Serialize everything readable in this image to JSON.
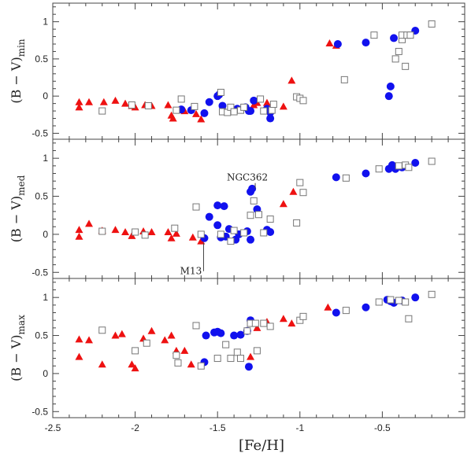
{
  "chart_data": {
    "type": "scatter",
    "xlabel": "[Fe/H]",
    "xlim": [
      -2.5,
      0.0
    ],
    "x_ticks": [
      "-2.5",
      "-2",
      "-1.5",
      "-1",
      "-0.5"
    ],
    "y_ticks": [
      "1",
      "0.5",
      "0",
      "-0.5"
    ],
    "colors": {
      "triangle": "#ee1111",
      "circle": "#1111ee",
      "square": "#777777"
    },
    "panels": [
      {
        "ylabel_main": "(B − V)",
        "ylabel_sub": "min",
        "ylim": [
          -0.58,
          1.25
        ],
        "series": [
          {
            "marker": "triangle",
            "x": [
              -2.34,
              -2.34,
              -2.28,
              -2.19,
              -2.12,
              -2.06,
              -2.02,
              -2.0,
              -1.94,
              -1.9,
              -1.8,
              -1.78,
              -1.77,
              -1.7,
              -1.63,
              -1.6,
              -1.28,
              -1.26,
              -1.2,
              -1.1,
              -1.05,
              -0.82,
              -0.78
            ],
            "y": [
              -0.08,
              -0.15,
              -0.08,
              -0.08,
              -0.06,
              -0.1,
              -0.13,
              -0.15,
              -0.12,
              -0.13,
              -0.12,
              -0.26,
              -0.3,
              -0.2,
              -0.24,
              -0.31,
              -0.12,
              -0.09,
              -0.09,
              -0.14,
              0.21,
              0.71,
              0.68
            ]
          },
          {
            "marker": "circle",
            "x": [
              -1.72,
              -1.66,
              -1.58,
              -1.55,
              -1.5,
              -1.49,
              -1.47,
              -1.38,
              -1.33,
              -1.31,
              -1.3,
              -1.28,
              -1.2,
              -1.18,
              -1.18,
              -0.77,
              -0.6,
              -0.46,
              -0.45,
              -0.43,
              -0.3
            ],
            "y": [
              -0.18,
              -0.19,
              -0.23,
              -0.08,
              0.0,
              0.02,
              -0.13,
              -0.17,
              -0.15,
              -0.2,
              -0.2,
              -0.06,
              -0.17,
              -0.22,
              -0.3,
              0.7,
              0.72,
              0.0,
              0.13,
              0.78,
              0.88
            ]
          },
          {
            "marker": "square",
            "x": [
              -2.2,
              -2.02,
              -1.92,
              -1.75,
              -1.72,
              -1.64,
              -1.48,
              -1.47,
              -1.44,
              -1.42,
              -1.4,
              -1.36,
              -1.34,
              -1.24,
              -1.22,
              -1.17,
              -1.16,
              -1.02,
              -1.0,
              -0.98,
              -0.73,
              -0.55,
              -0.42,
              -0.4,
              -0.38,
              -0.38,
              -0.36,
              -0.35,
              -0.33,
              -0.2
            ],
            "y": [
              -0.2,
              -0.12,
              -0.13,
              -0.19,
              -0.04,
              -0.14,
              0.05,
              -0.21,
              -0.22,
              -0.15,
              -0.21,
              -0.19,
              -0.15,
              -0.04,
              -0.2,
              -0.19,
              -0.11,
              -0.01,
              -0.03,
              -0.06,
              0.22,
              0.82,
              0.5,
              0.6,
              0.76,
              0.82,
              0.4,
              0.82,
              0.82,
              0.97
            ]
          }
        ]
      },
      {
        "ylabel_main": "(B − V)",
        "ylabel_sub": "med",
        "ylim": [
          -0.58,
          1.25
        ],
        "series": [
          {
            "marker": "triangle",
            "x": [
              -2.34,
              -2.34,
              -2.28,
              -2.2,
              -2.12,
              -2.06,
              -2.02,
              -1.95,
              -1.9,
              -1.8,
              -1.78,
              -1.75,
              -1.65,
              -1.6,
              -1.1,
              -1.04
            ],
            "y": [
              0.06,
              -0.03,
              0.14,
              0.05,
              0.06,
              0.03,
              -0.02,
              0.04,
              0.03,
              0.03,
              -0.05,
              0.01,
              -0.04,
              -0.09,
              0.4,
              0.56
            ]
          },
          {
            "marker": "circle",
            "x": [
              -1.58,
              -1.55,
              -1.5,
              -1.5,
              -1.48,
              -1.46,
              -1.45,
              -1.43,
              -1.39,
              -1.37,
              -1.32,
              -1.3,
              -1.3,
              -1.29,
              -1.26,
              -1.2,
              -1.18,
              -0.78,
              -0.6,
              -0.46,
              -0.44,
              -0.42,
              -0.38,
              -0.3
            ],
            "y": [
              -0.05,
              0.23,
              0.38,
              0.12,
              -0.04,
              0.37,
              -0.03,
              0.07,
              -0.07,
              0.0,
              0.04,
              0.56,
              -0.07,
              0.6,
              0.33,
              0.06,
              0.03,
              0.75,
              0.8,
              0.86,
              0.91,
              0.86,
              0.88,
              0.94
            ]
          },
          {
            "marker": "square",
            "x": [
              -2.2,
              -2.0,
              -1.94,
              -1.76,
              -1.63,
              -1.6,
              -1.48,
              -1.42,
              -1.4,
              -1.34,
              -1.3,
              -1.28,
              -1.25,
              -1.22,
              -1.18,
              -1.02,
              -1.0,
              -0.98,
              -0.72,
              -0.52,
              -0.4,
              -0.36,
              -0.34,
              -0.2
            ],
            "y": [
              0.04,
              0.03,
              -0.01,
              0.08,
              0.36,
              0.0,
              0.0,
              -0.09,
              0.05,
              0.02,
              0.25,
              0.44,
              0.26,
              0.02,
              0.2,
              0.15,
              0.68,
              0.55,
              0.74,
              0.86,
              0.9,
              0.91,
              0.88,
              0.96
            ]
          }
        ],
        "annotations": [
          {
            "text": "NGC362",
            "x": -1.3,
            "y": 0.56
          },
          {
            "text": "M13",
            "x": -1.58,
            "y": -0.05
          }
        ]
      },
      {
        "ylabel_main": "(B − V)",
        "ylabel_sub": "max",
        "ylim": [
          -0.58,
          1.25
        ],
        "series": [
          {
            "marker": "triangle",
            "x": [
              -2.34,
              -2.34,
              -2.28,
              -2.2,
              -2.12,
              -2.08,
              -2.0,
              -2.02,
              -1.95,
              -1.9,
              -1.82,
              -1.78,
              -1.75,
              -1.7,
              -1.66,
              -1.3,
              -1.26,
              -1.2,
              -1.1,
              -1.05,
              -0.83
            ],
            "y": [
              0.45,
              0.22,
              0.44,
              0.12,
              0.5,
              0.52,
              0.07,
              0.12,
              0.46,
              0.56,
              0.44,
              0.5,
              0.3,
              0.3,
              0.12,
              0.22,
              0.6,
              0.68,
              0.72,
              0.66,
              0.87
            ]
          },
          {
            "marker": "circle",
            "x": [
              -1.58,
              -1.57,
              -1.52,
              -1.5,
              -1.48,
              -1.4,
              -1.36,
              -1.32,
              -1.31,
              -1.3,
              -0.78,
              -0.6,
              -0.47,
              -0.45,
              -0.43,
              -0.38,
              -0.3
            ],
            "y": [
              0.15,
              0.5,
              0.54,
              0.55,
              0.53,
              0.5,
              0.51,
              0.56,
              0.09,
              0.7,
              0.8,
              0.87,
              0.97,
              0.95,
              0.93,
              0.96,
              1.0
            ]
          },
          {
            "marker": "square",
            "x": [
              -2.2,
              -2.0,
              -1.93,
              -1.75,
              -1.74,
              -1.63,
              -1.6,
              -1.5,
              -1.45,
              -1.42,
              -1.38,
              -1.36,
              -1.32,
              -1.3,
              -1.27,
              -1.26,
              -1.22,
              -1.18,
              -1.0,
              -0.98,
              -0.72,
              -0.52,
              -0.45,
              -0.4,
              -0.36,
              -0.34,
              -0.2
            ],
            "y": [
              0.57,
              0.3,
              0.4,
              0.24,
              0.14,
              0.63,
              0.1,
              0.2,
              0.38,
              0.2,
              0.28,
              0.2,
              0.56,
              0.66,
              0.66,
              0.3,
              0.66,
              0.62,
              0.7,
              0.75,
              0.83,
              0.94,
              0.97,
              0.96,
              0.94,
              0.72,
              1.04
            ]
          }
        ]
      }
    ]
  }
}
